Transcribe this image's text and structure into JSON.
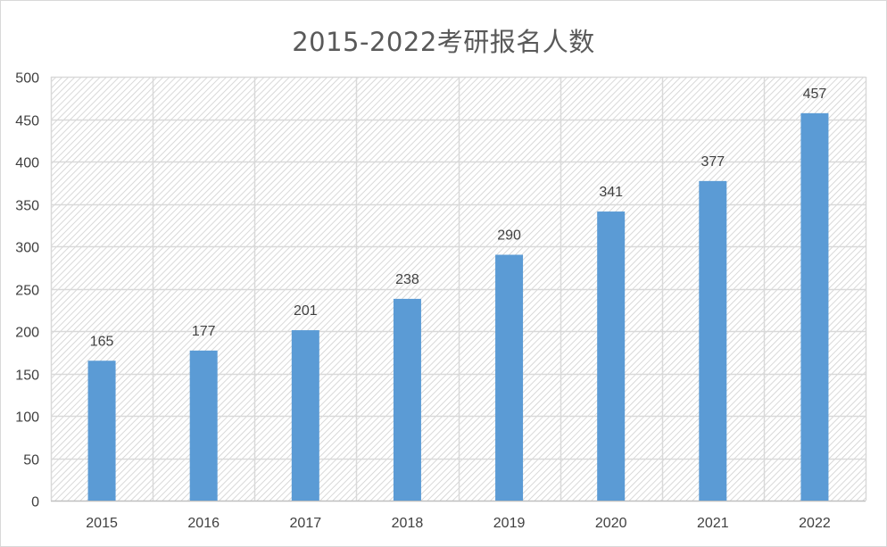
{
  "chart_data": {
    "type": "bar",
    "title": "2015-2022考研报名人数",
    "categories": [
      "2015",
      "2016",
      "2017",
      "2018",
      "2019",
      "2020",
      "2021",
      "2022"
    ],
    "values": [
      165,
      177,
      201,
      238,
      290,
      341,
      377,
      457
    ],
    "ylim": [
      0,
      500
    ],
    "yticks": [
      0,
      50,
      100,
      150,
      200,
      250,
      300,
      350,
      400,
      450,
      500
    ],
    "xlabel": "",
    "ylabel": "",
    "grid": true,
    "data_labels": true,
    "legend": "none",
    "colors": {
      "bar": "#5b9bd5",
      "grid": "#d9d9d9",
      "hatch": "#cfcfcf",
      "text": "#404040",
      "title": "#595959"
    }
  }
}
